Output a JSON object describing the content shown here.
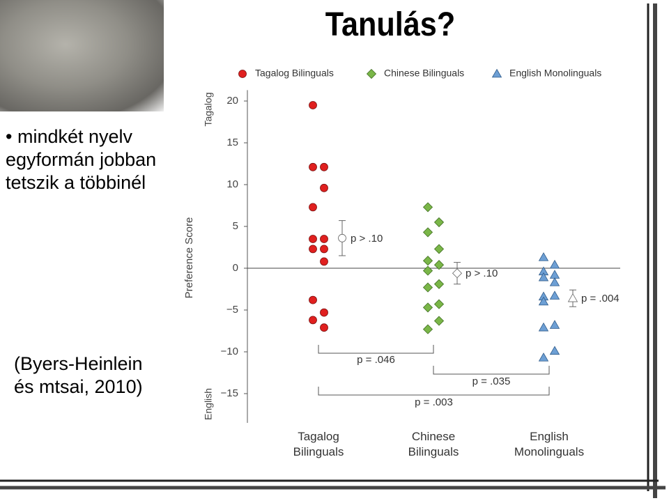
{
  "slide": {
    "title": "Tanulás?",
    "bullet": "mindkét nyelv egyformán jobban tetszik a többinél",
    "citation": "(Byers-Heinlein és mtsai, 2010)"
  },
  "chart_data": {
    "type": "strip",
    "y_label": "Preference Score",
    "y_top_label": "Tagalog",
    "y_bottom_label": "English",
    "categories": [
      "Tagalog Bilinguals",
      "Chinese Bilinguals",
      "English Monolinguals"
    ],
    "ylim": [
      -18.5,
      21.3
    ],
    "yticks": [
      20,
      15,
      10,
      5,
      0,
      {
        "value": -5,
        "label": "−5"
      },
      {
        "value": -10,
        "label": "−10"
      },
      {
        "value": -15,
        "label": "−15"
      }
    ],
    "series": [
      {
        "name": "Tagalog Bilinguals",
        "color": "#e0201f",
        "marker": "circle",
        "values": [
          19.5,
          12.1,
          12.1,
          9.6,
          7.3,
          3.5,
          3.5,
          2.3,
          2.3,
          0.8,
          -3.8,
          -5.3,
          -6.2,
          -7.1
        ],
        "mean": 3.6,
        "error": 2.1,
        "p_label": "p > .10"
      },
      {
        "name": "Chinese Bilinguals",
        "color": "#7ab648",
        "marker": "diamond",
        "values": [
          7.3,
          5.5,
          4.3,
          2.3,
          0.9,
          0.4,
          -0.3,
          -1.9,
          -2.3,
          -4.3,
          -4.7,
          -6.3,
          -7.3
        ],
        "mean": -0.6,
        "error": 1.3,
        "p_label": "p > .10"
      },
      {
        "name": "English Monolinguals",
        "color": "#6d9fd4",
        "marker": "triangle",
        "values": [
          1.3,
          0.4,
          -0.4,
          -0.8,
          -1.1,
          -1.7,
          -3.4,
          -3.3,
          -4,
          -6.8,
          -7.1,
          -9.9,
          -10.7
        ],
        "mean": -3.6,
        "error": 1.0,
        "p_label": "p = .004"
      }
    ],
    "comparisons": [
      {
        "label": "p = .046"
      },
      {
        "label": "p = .035"
      },
      {
        "label": "p = .003"
      }
    ]
  }
}
